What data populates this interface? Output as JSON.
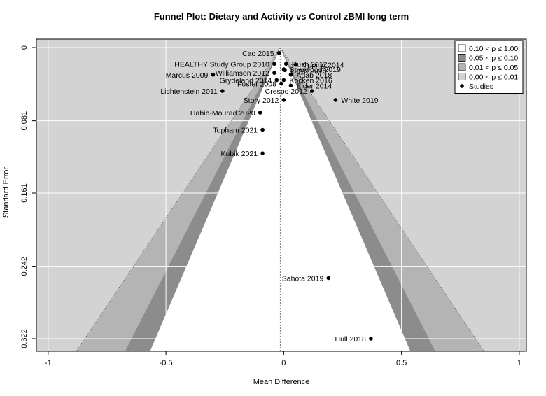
{
  "chart_data": {
    "type": "scatter",
    "title": "Funnel Plot: Dietary and Activity vs Control zBMI long term",
    "xlabel": "Mean Difference",
    "ylabel": "Standard Error",
    "xlim": [
      -1.05,
      1.03
    ],
    "ylim": [
      0,
      0.322
    ],
    "y_reversed": true,
    "x_ticks": [
      -1,
      -0.5,
      0,
      0.5,
      1
    ],
    "x_tick_labels": [
      "-1",
      "-0.5",
      "0",
      "0.5",
      "1"
    ],
    "y_ticks": [
      0,
      0.081,
      0.161,
      0.242,
      0.322
    ],
    "y_tick_labels": [
      "0",
      "0.081",
      "0.161",
      "0.242",
      "0.322"
    ],
    "reference_line_x": -0.015,
    "background_color": "#d3d3d3",
    "contour_regions": [
      {
        "label": "0.10 < p ≤ 1.00",
        "z": 1.645,
        "color": "#ffffff"
      },
      {
        "label": "0.05 < p ≤ 0.10",
        "z": 1.96,
        "color": "#8c8c8c"
      },
      {
        "label": "0.01 < p ≤ 0.05",
        "z": 2.576,
        "color": "#b4b4b4"
      },
      {
        "label": "0.00 < p ≤ 0.01",
        "z": null,
        "color": "#d3d3d3"
      }
    ],
    "legend": {
      "position": "top-right",
      "entries": [
        "0.10 < p ≤ 1.00",
        "0.05 < p ≤ 0.10",
        "0.01 < p ≤ 0.05",
        "0.00 < p ≤ 0.01",
        "Studies"
      ]
    },
    "series": [
      {
        "name": "Studies",
        "points": [
          {
            "study": "Cao 2015",
            "x": -0.02,
            "y": 0.006,
            "anchor": "end"
          },
          {
            "study": "Rush 2012",
            "x": 0.01,
            "y": 0.018,
            "anchor": "start"
          },
          {
            "study": "HEALTHY Study Group 2010",
            "x": -0.04,
            "y": 0.018,
            "anchor": "end"
          },
          {
            "study": "Kipping 2014",
            "x": 0.05,
            "y": 0.019,
            "anchor": "start"
          },
          {
            "study": "Sherwood 2019",
            "x": 0.0,
            "y": 0.024,
            "anchor": "start"
          },
          {
            "study": "Lloyd 2018",
            "x": 0.005,
            "y": 0.025,
            "anchor": "start"
          },
          {
            "study": "Marcus 2009",
            "x": -0.3,
            "y": 0.03,
            "anchor": "end"
          },
          {
            "study": "Williamson 2012",
            "x": -0.04,
            "y": 0.028,
            "anchor": "end"
          },
          {
            "study": "Adab 2018",
            "x": 0.03,
            "y": 0.03,
            "anchor": "start"
          },
          {
            "study": "Grydeland 2014",
            "x": -0.03,
            "y": 0.036,
            "anchor": "end"
          },
          {
            "study": "Kocken 2016",
            "x": 0.0,
            "y": 0.036,
            "anchor": "start"
          },
          {
            "study": "Foster 2008",
            "x": -0.01,
            "y": 0.04,
            "anchor": "end"
          },
          {
            "study": "Elder 2014",
            "x": 0.03,
            "y": 0.042,
            "anchor": "start"
          },
          {
            "study": "Lichtenstein 2011",
            "x": -0.26,
            "y": 0.048,
            "anchor": "end"
          },
          {
            "study": "Crespo 2012",
            "x": 0.12,
            "y": 0.048,
            "anchor": "end"
          },
          {
            "study": "White 2019",
            "x": 0.22,
            "y": 0.058,
            "anchor": "start"
          },
          {
            "study": "Story 2012",
            "x": 0.0,
            "y": 0.058,
            "anchor": "end"
          },
          {
            "study": "Habib-Mourad 2020",
            "x": -0.1,
            "y": 0.072,
            "anchor": "end"
          },
          {
            "study": "Topham 2021",
            "x": -0.09,
            "y": 0.091,
            "anchor": "end"
          },
          {
            "study": "Kubik 2021",
            "x": -0.09,
            "y": 0.117,
            "anchor": "end"
          },
          {
            "study": "Sahota 2019",
            "x": 0.19,
            "y": 0.255,
            "anchor": "end"
          },
          {
            "study": "Hull 2018",
            "x": 0.37,
            "y": 0.322,
            "anchor": "end"
          }
        ]
      }
    ]
  }
}
